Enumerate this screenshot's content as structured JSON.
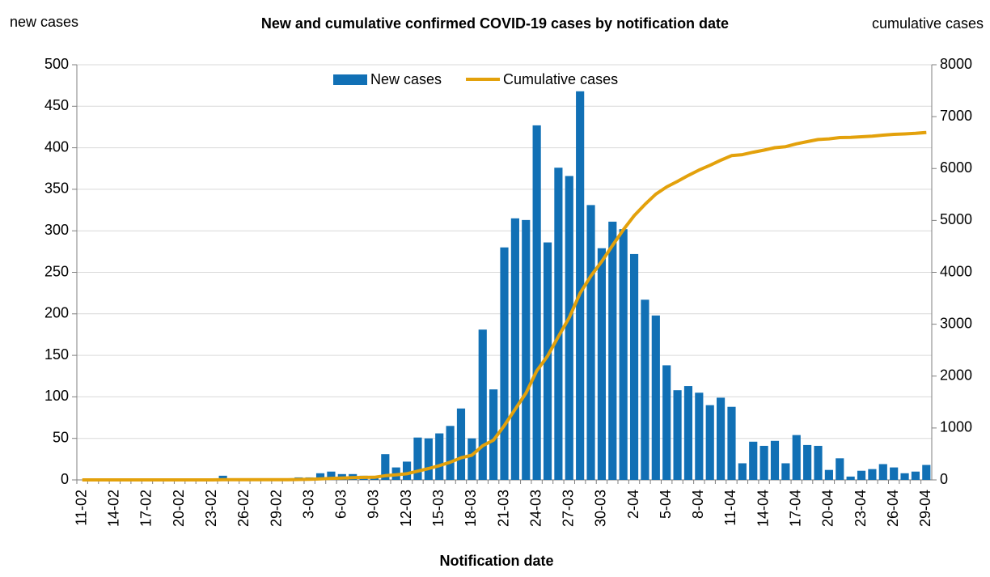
{
  "chart_data": {
    "type": "bar_line",
    "title": "New and cumulative confirmed COVID-19 cases by notification date",
    "y_label": "new cases",
    "y2_label": "cumulative cases",
    "x_label": "Notification date",
    "categories": [
      "11-02",
      null,
      null,
      "14-02",
      null,
      null,
      "17-02",
      null,
      null,
      "20-02",
      null,
      null,
      "23-02",
      null,
      null,
      "26-02",
      null,
      null,
      "29-02",
      null,
      null,
      "3-03",
      null,
      null,
      "6-03",
      null,
      null,
      "9-03",
      null,
      null,
      "12-03",
      null,
      null,
      "15-03",
      null,
      null,
      "18-03",
      null,
      null,
      "21-03",
      null,
      null,
      "24-03",
      null,
      null,
      "27-03",
      null,
      null,
      "30-03",
      null,
      null,
      "2-04",
      null,
      null,
      "5-04",
      null,
      null,
      "8-04",
      null,
      null,
      "11-04",
      null,
      null,
      "14-04",
      null,
      null,
      "17-04",
      null,
      null,
      "20-04",
      null,
      null,
      "23-04",
      null,
      null,
      "26-04",
      null,
      null,
      "29-04"
    ],
    "series": [
      {
        "name": "New cases",
        "color": "#1170b5",
        "kind": "bar",
        "values": [
          0,
          0,
          0,
          0,
          0,
          0,
          0,
          0,
          0,
          0,
          0,
          0,
          0,
          5,
          0,
          0,
          0,
          0,
          0,
          0,
          3,
          3,
          8,
          10,
          7,
          7,
          5,
          2,
          31,
          15,
          22,
          51,
          50,
          56,
          65,
          86,
          50,
          181,
          109,
          280,
          315,
          313,
          427,
          286,
          376,
          366,
          468,
          331,
          279,
          311,
          302,
          272,
          217,
          198,
          138,
          108,
          113,
          105,
          90,
          99,
          88,
          20,
          46,
          41,
          47,
          20,
          54,
          42,
          41,
          12,
          26,
          4,
          11,
          13,
          19,
          15,
          8,
          10,
          18
        ]
      },
      {
        "name": "Cumulative cases",
        "color": "#e3a10b",
        "kind": "line",
        "axis": "y2",
        "values": [
          0,
          0,
          0,
          0,
          0,
          0,
          0,
          0,
          0,
          0,
          0,
          0,
          0,
          5,
          5,
          5,
          5,
          5,
          5,
          5,
          8,
          11,
          19,
          29,
          36,
          43,
          48,
          50,
          81,
          96,
          118,
          169,
          219,
          275,
          340,
          426,
          476,
          657,
          766,
          1046,
          1361,
          1674,
          2101,
          2387,
          2763,
          3129,
          3597,
          3928,
          4207,
          4518,
          4820,
          5092,
          5309,
          5507,
          5645,
          5753,
          5866,
          5971,
          6061,
          6160,
          6248,
          6268,
          6314,
          6355,
          6402,
          6422,
          6476,
          6518,
          6559,
          6571,
          6597,
          6601,
          6612,
          6625,
          6644,
          6659,
          6667,
          6677,
          6695
        ]
      }
    ],
    "ylim": [
      0,
      500
    ],
    "yticks": [
      0,
      50,
      100,
      150,
      200,
      250,
      300,
      350,
      400,
      450,
      500
    ],
    "y2lim": [
      0,
      8000
    ],
    "y2ticks": [
      0,
      1000,
      2000,
      3000,
      4000,
      5000,
      6000,
      7000,
      8000
    ],
    "grid": true,
    "legend": "top"
  }
}
